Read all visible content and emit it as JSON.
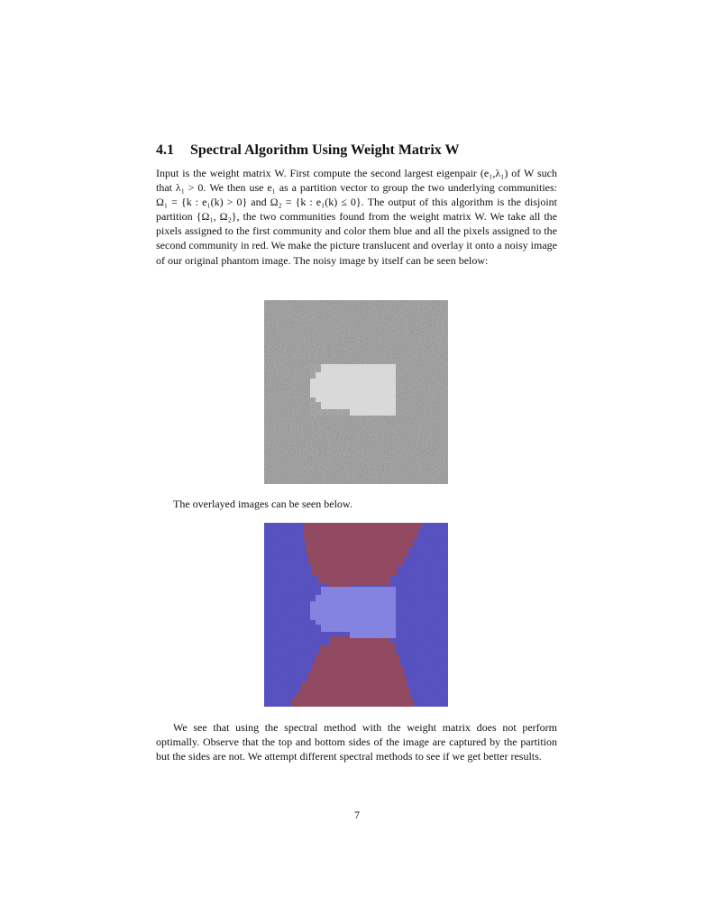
{
  "section": {
    "number": "4.1",
    "title": "Spectral Algorithm Using Weight Matrix W"
  },
  "paragraphs": {
    "intro": "Input is the weight matrix W. First compute the second largest eigenpair (e₁,λ₁) of W such that λ₁ > 0. We then use e₁ as a partition vector to group the two underlying communities: Ω₁ = {k : e₁(k) > 0} and Ω₂ = {k : e₁(k) ≤ 0}. The output of this algorithm is the disjoint partition {Ω₁, Ω₂}, the two communities found from the weight matrix W. We take all the pixels assigned to the first community and color them blue and all the pixels assigned to the second community in red. We make the picture translucent and overlay it onto a noisy image of our original phantom image. The noisy image by itself can be seen below:",
    "caption": "The overlayed images can be seen below.",
    "conclusion": "We see that using the spectral method with the weight matrix does not perform optimally. Observe that the top and bottom sides of the image are captured by the partition but the sides are not. We attempt different spectral methods to see if we get better results."
  },
  "page_number": "7",
  "colors": {
    "noise_background": "#808080",
    "phantom_shape": "#e2e2e2",
    "community_blue": "#4a43c2",
    "community_red": "#8c3a55",
    "overlay_shape": "#7d7be6"
  }
}
